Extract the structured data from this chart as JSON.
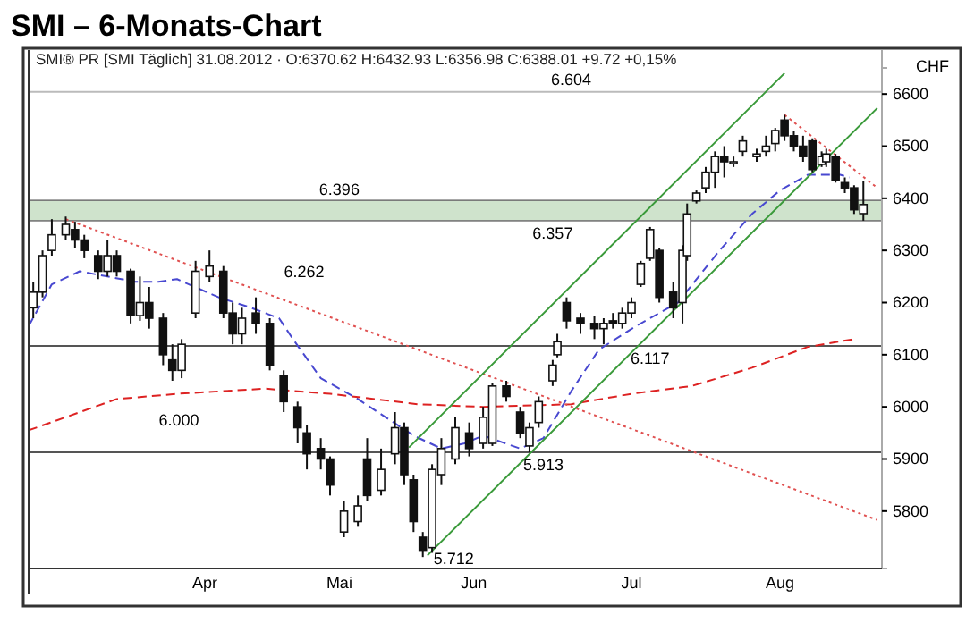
{
  "chart_data": {
    "type": "candlestick",
    "title": "SMI – 6-Monats-Chart",
    "subtitle": "SMI® PR [SMI  Täglich] 31.08.2012 · O:6370.62 H:6432.93 L:6356.98 C:6388.01 +9.72 +0,15%",
    "ylabel": "CHF",
    "x": [
      "2012-03-05",
      "2012-03-07",
      "2012-03-09",
      "2012-03-12",
      "2012-03-14",
      "2012-03-16",
      "2012-03-19",
      "2012-03-21",
      "2012-03-23",
      "2012-03-26",
      "2012-03-28",
      "2012-03-30",
      "2012-04-02",
      "2012-04-04",
      "2012-04-06",
      "2012-04-09",
      "2012-04-12",
      "2012-04-15",
      "2012-04-17",
      "2012-04-19",
      "2012-04-22",
      "2012-04-25",
      "2012-04-28",
      "2012-05-01",
      "2012-05-03",
      "2012-05-06",
      "2012-05-08",
      "2012-05-11",
      "2012-05-14",
      "2012-05-16",
      "2012-05-19",
      "2012-05-22",
      "2012-05-24",
      "2012-05-26",
      "2012-05-28",
      "2012-05-30",
      "2012-06-01",
      "2012-06-04",
      "2012-06-07",
      "2012-06-10",
      "2012-06-12",
      "2012-06-15",
      "2012-06-18",
      "2012-06-20",
      "2012-06-22",
      "2012-06-25",
      "2012-06-26",
      "2012-06-28",
      "2012-07-01",
      "2012-07-04",
      "2012-07-06",
      "2012-07-08",
      "2012-07-10",
      "2012-07-12",
      "2012-07-14",
      "2012-07-16",
      "2012-07-18",
      "2012-07-21",
      "2012-07-23",
      "2012-07-24",
      "2012-07-26",
      "2012-07-28",
      "2012-07-30",
      "2012-08-01",
      "2012-08-03",
      "2012-08-05",
      "2012-08-08",
      "2012-08-10",
      "2012-08-12",
      "2012-08-14",
      "2012-08-16",
      "2012-08-18",
      "2012-08-20",
      "2012-08-22",
      "2012-08-23",
      "2012-08-25",
      "2012-08-27",
      "2012-08-29",
      "2012-08-31"
    ],
    "ohlc": [
      [
        6190,
        6240,
        6170,
        6220
      ],
      [
        6220,
        6300,
        6210,
        6290
      ],
      [
        6300,
        6360,
        6290,
        6330
      ],
      [
        6330,
        6365,
        6320,
        6350
      ],
      [
        6340,
        6355,
        6305,
        6320
      ],
      [
        6320,
        6330,
        6285,
        6300
      ],
      [
        6290,
        6300,
        6245,
        6260
      ],
      [
        6260,
        6320,
        6250,
        6290
      ],
      [
        6290,
        6300,
        6250,
        6260
      ],
      [
        6260,
        6265,
        6160,
        6175
      ],
      [
        6175,
        6250,
        6165,
        6200
      ],
      [
        6200,
        6230,
        6150,
        6170
      ],
      [
        6170,
        6180,
        6080,
        6100
      ],
      [
        6090,
        6120,
        6050,
        6070
      ],
      [
        6070,
        6130,
        6055,
        6120
      ],
      [
        6180,
        6280,
        6170,
        6260
      ],
      [
        6250,
        6300,
        6240,
        6270
      ],
      [
        6260,
        6270,
        6170,
        6180
      ],
      [
        6180,
        6200,
        6120,
        6140
      ],
      [
        6140,
        6190,
        6120,
        6170
      ],
      [
        6180,
        6210,
        6140,
        6160
      ],
      [
        6160,
        6170,
        6070,
        6080
      ],
      [
        6060,
        6070,
        5990,
        6010
      ],
      [
        6000,
        6010,
        5930,
        5960
      ],
      [
        5950,
        5965,
        5880,
        5910
      ],
      [
        5920,
        5940,
        5880,
        5900
      ],
      [
        5900,
        5905,
        5830,
        5850
      ],
      [
        5760,
        5820,
        5750,
        5800
      ],
      [
        5780,
        5830,
        5770,
        5810
      ],
      [
        5900,
        5940,
        5820,
        5830
      ],
      [
        5840,
        5920,
        5830,
        5880
      ],
      [
        5910,
        5990,
        5890,
        5960
      ],
      [
        5960,
        5970,
        5850,
        5870
      ],
      [
        5860,
        5870,
        5760,
        5780
      ],
      [
        5750,
        5760,
        5712,
        5725
      ],
      [
        5730,
        5890,
        5720,
        5880
      ],
      [
        5870,
        5940,
        5850,
        5920
      ],
      [
        5900,
        5980,
        5890,
        5960
      ],
      [
        5950,
        5970,
        5905,
        5920
      ],
      [
        5930,
        6000,
        5920,
        5980
      ],
      [
        5930,
        6045,
        5925,
        6040
      ],
      [
        6040,
        6050,
        6010,
        6020
      ],
      [
        5990,
        6000,
        5940,
        5950
      ],
      [
        5925,
        5970,
        5913,
        5960
      ],
      [
        5970,
        6020,
        5960,
        6010
      ],
      [
        6050,
        6090,
        6040,
        6080
      ],
      [
        6100,
        6140,
        6095,
        6125
      ],
      [
        6200,
        6210,
        6150,
        6165
      ],
      [
        6170,
        6180,
        6140,
        6160
      ],
      [
        6160,
        6175,
        6130,
        6150
      ],
      [
        6150,
        6170,
        6120,
        6160
      ],
      [
        6165,
        6180,
        6150,
        6160
      ],
      [
        6160,
        6190,
        6150,
        6180
      ],
      [
        6180,
        6210,
        6170,
        6200
      ],
      [
        6235,
        6280,
        6230,
        6275
      ],
      [
        6285,
        6345,
        6280,
        6340
      ],
      [
        6300,
        6305,
        6200,
        6210
      ],
      [
        6220,
        6240,
        6170,
        6190
      ],
      [
        6200,
        6310,
        6160,
        6300
      ],
      [
        6290,
        6390,
        6280,
        6370
      ],
      [
        6395,
        6415,
        6390,
        6410
      ],
      [
        6420,
        6460,
        6410,
        6450
      ],
      [
        6450,
        6490,
        6420,
        6480
      ],
      [
        6480,
        6500,
        6440,
        6470
      ],
      [
        6470,
        6480,
        6460,
        6470
      ],
      [
        6490,
        6520,
        6480,
        6510
      ],
      [
        6480,
        6495,
        6470,
        6485
      ],
      [
        6490,
        6520,
        6480,
        6500
      ],
      [
        6505,
        6535,
        6490,
        6530
      ],
      [
        6550,
        6560,
        6510,
        6520
      ],
      [
        6520,
        6530,
        6490,
        6500
      ],
      [
        6500,
        6520,
        6470,
        6480
      ],
      [
        6510,
        6515,
        6450,
        6455
      ],
      [
        6465,
        6490,
        6460,
        6480
      ],
      [
        6470,
        6495,
        6460,
        6485
      ],
      [
        6480,
        6485,
        6430,
        6435
      ],
      [
        6430,
        6440,
        6410,
        6420
      ],
      [
        6420,
        6425,
        6370,
        6378
      ],
      [
        6370.62,
        6432.93,
        6356.98,
        6388.01
      ]
    ],
    "series": [
      {
        "type": "line",
        "color": "#4848d0",
        "line_style": "dashed",
        "x": [
          "2012-03-04",
          "2012-03-09",
          "2012-03-15",
          "2012-03-21",
          "2012-03-27",
          "2012-04-01",
          "2012-04-05",
          "2012-04-14",
          "2012-04-21",
          "2012-04-27",
          "2012-04-30",
          "2012-05-06",
          "2012-05-14",
          "2012-05-20",
          "2012-05-26",
          "2012-06-01",
          "2012-06-06",
          "2012-06-10",
          "2012-06-18",
          "2012-06-23",
          "2012-06-26",
          "2012-06-29",
          "2012-07-05",
          "2012-07-13",
          "2012-07-22",
          "2012-07-31",
          "2012-08-07",
          "2012-08-13",
          "2012-08-19",
          "2012-08-26",
          "2012-08-28"
        ],
        "values": [
          6155,
          6235,
          6260,
          6250,
          6240,
          6240,
          6245,
          6210,
          6190,
          6170,
          6130,
          6055,
          6015,
          5980,
          5945,
          5920,
          5930,
          5945,
          5920,
          5940,
          5985,
          6030,
          6110,
          6155,
          6200,
          6300,
          6370,
          6415,
          6445,
          6445,
          6440
        ]
      },
      {
        "type": "line",
        "color": "#dd2222",
        "line_style": "dashed",
        "x": [
          "2012-03-04",
          "2012-03-23",
          "2012-04-05",
          "2012-04-24",
          "2012-05-08",
          "2012-05-27",
          "2012-06-10",
          "2012-06-29",
          "2012-07-12",
          "2012-07-25",
          "2012-08-07",
          "2012-08-19",
          "2012-08-29"
        ],
        "values": [
          5955,
          6015,
          6025,
          6035,
          6025,
          6005,
          6000,
          6005,
          6025,
          6040,
          6075,
          6115,
          6130
        ]
      },
      {
        "type": "line",
        "color": "#e05050",
        "line_style": "dotted",
        "x": [
          "2012-03-12",
          "2012-09-03"
        ],
        "values": [
          6360,
          5783
        ]
      },
      {
        "type": "line",
        "color": "#e05050",
        "line_style": "dotted",
        "x": [
          "2012-08-14",
          "2012-09-03"
        ],
        "values": [
          6560,
          6420
        ]
      },
      {
        "type": "line",
        "color": "#3a9a3a",
        "line_style": "solid",
        "x": [
          "2012-05-25",
          "2012-08-14"
        ],
        "values": [
          5922,
          6640
        ]
      },
      {
        "type": "line",
        "color": "#3a9a3a",
        "line_style": "solid",
        "x": [
          "2012-05-29",
          "2012-09-03"
        ],
        "values": [
          5715,
          6573
        ]
      }
    ],
    "bands": [
      {
        "axis": "y",
        "from": 6357,
        "to": 6396,
        "color": "#cfe3cc"
      }
    ],
    "ref_lines": [
      {
        "axis": "y",
        "value": 6604,
        "color": "#bbbbbb"
      },
      {
        "axis": "y",
        "value": 6117,
        "color": "#555555"
      },
      {
        "axis": "y",
        "value": 5913,
        "color": "#555555"
      }
    ],
    "annotations": [
      {
        "text": "6.604",
        "x": "2012-06-29",
        "y": 6604
      },
      {
        "text": "6.396",
        "x": "2012-05-10",
        "y": 6396
      },
      {
        "text": "6.357",
        "x": "2012-06-25",
        "y": 6357
      },
      "6.262",
      "6.000",
      {
        "text": "6.117",
        "x": "2012-07-16",
        "y": 6117
      },
      {
        "text": "5.913",
        "x": "2012-06-23",
        "y": 5913
      },
      {
        "text": "5.712",
        "x": "2012-05-28",
        "y": 5712
      }
    ],
    "xlim": [
      "2012-03-04",
      "2012-09-04"
    ],
    "xticks": [
      {
        "value": "2012-04-11",
        "label": "Apr"
      },
      {
        "value": "2012-05-10",
        "label": "Mai"
      },
      {
        "value": "2012-06-08",
        "label": "Jun"
      },
      {
        "value": "2012-07-12",
        "label": "Jul"
      },
      {
        "value": "2012-08-13",
        "label": "Aug"
      }
    ],
    "ylim": [
      5690,
      6650
    ],
    "yticks": [
      5800,
      5900,
      6000,
      6100,
      6200,
      6300,
      6400,
      6500,
      6600
    ]
  }
}
